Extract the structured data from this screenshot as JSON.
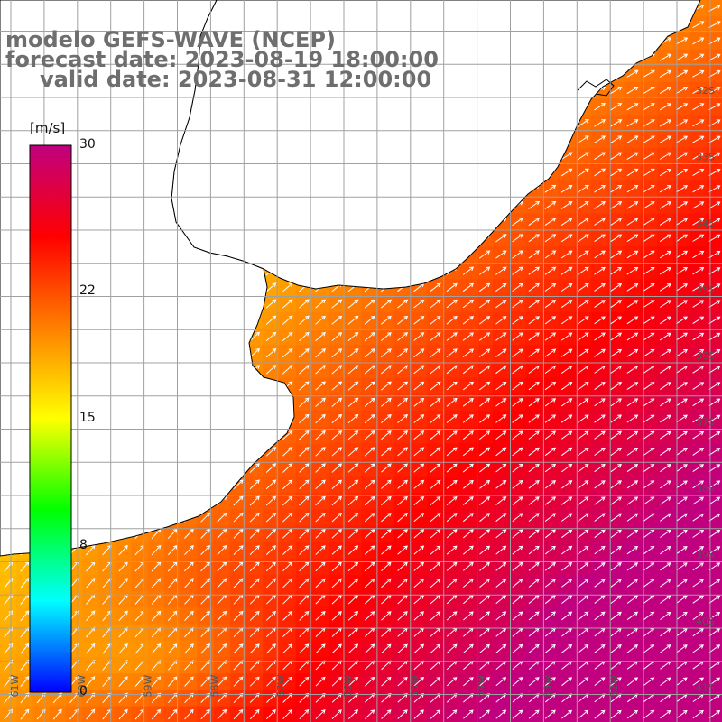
{
  "title": {
    "line1": "modelo GEFS-WAVE (NCEP)",
    "line2": "forecast date: 2023-08-19 18:00:00",
    "line3": "valid date: 2023-08-31 12:00:00"
  },
  "colorbar": {
    "unit": "[m/s]",
    "min": 0,
    "max": 30,
    "ticks": [
      {
        "value": 30,
        "label": "30"
      },
      {
        "value": 22,
        "label": "22"
      },
      {
        "value": 15,
        "label": "15"
      },
      {
        "value": 8,
        "label": "8"
      },
      {
        "value": 0,
        "label": "0"
      }
    ],
    "colors": [
      "#0000ff",
      "#00ffff",
      "#00ff00",
      "#ffff00",
      "#ff7f00",
      "#ff0000",
      "#c0007f"
    ]
  },
  "map": {
    "lat_labels": [
      {
        "lat": -32,
        "label": "32S"
      },
      {
        "lat": -33,
        "label": "33S"
      },
      {
        "lat": -34,
        "label": "34S"
      },
      {
        "lat": -35,
        "label": "35S"
      },
      {
        "lat": -36,
        "label": "36S"
      },
      {
        "lat": -37,
        "label": "37S"
      },
      {
        "lat": -38,
        "label": "38S"
      },
      {
        "lat": -39,
        "label": "39S"
      },
      {
        "lat": -40,
        "label": "40S"
      },
      {
        "lat": -41,
        "label": "41S"
      }
    ],
    "lon_labels": [
      {
        "lon": -61,
        "label": "61W"
      },
      {
        "lon": -60,
        "label": "60W"
      },
      {
        "lon": -59,
        "label": "59W"
      },
      {
        "lon": -58,
        "label": "58W"
      },
      {
        "lon": -57,
        "label": "57W"
      },
      {
        "lon": -56,
        "label": "56W"
      },
      {
        "lon": -55,
        "label": "55W"
      },
      {
        "lon": -54,
        "label": "54W"
      },
      {
        "lon": -53,
        "label": "53W"
      },
      {
        "lon": -52,
        "label": "52W"
      }
    ],
    "land_color": "#ffffff",
    "grid_color": "#a0a0a0",
    "coast_color": "#000000"
  }
}
